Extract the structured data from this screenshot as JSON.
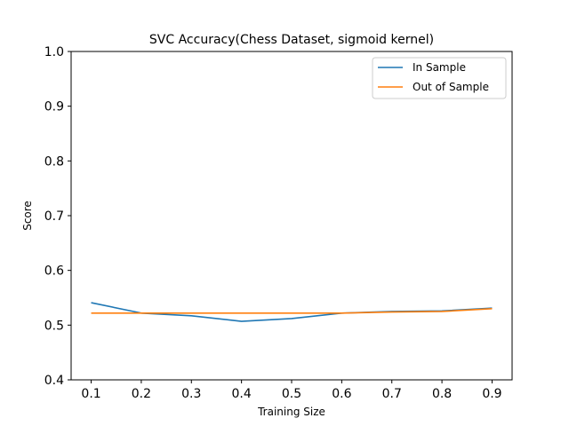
{
  "chart_data": {
    "type": "line",
    "title": "SVC Accuracy(Chess Dataset, sigmoid kernel)",
    "xlabel": "Training Size",
    "ylabel": "Score",
    "xlim": [
      0.06,
      0.94
    ],
    "ylim": [
      0.4,
      1.0
    ],
    "x_ticks": [
      "0.1",
      "0.2",
      "0.3",
      "0.4",
      "0.5",
      "0.6",
      "0.7",
      "0.8",
      "0.9"
    ],
    "y_ticks": [
      "0.4",
      "0.5",
      "0.6",
      "0.7",
      "0.8",
      "0.9",
      "1.0"
    ],
    "grid": false,
    "legend_position": "top-right",
    "x": [
      0.1,
      0.2,
      0.3,
      0.4,
      0.5,
      0.6,
      0.7,
      0.8,
      0.9
    ],
    "series": [
      {
        "name": "In Sample",
        "color": "#1f77b4",
        "values": [
          0.541,
          0.522,
          0.517,
          0.507,
          0.512,
          0.522,
          0.525,
          0.526,
          0.531
        ]
      },
      {
        "name": "Out of Sample",
        "color": "#ff7f0e",
        "values": [
          0.522,
          0.522,
          0.522,
          0.522,
          0.522,
          0.522,
          0.524,
          0.525,
          0.53
        ]
      }
    ]
  }
}
